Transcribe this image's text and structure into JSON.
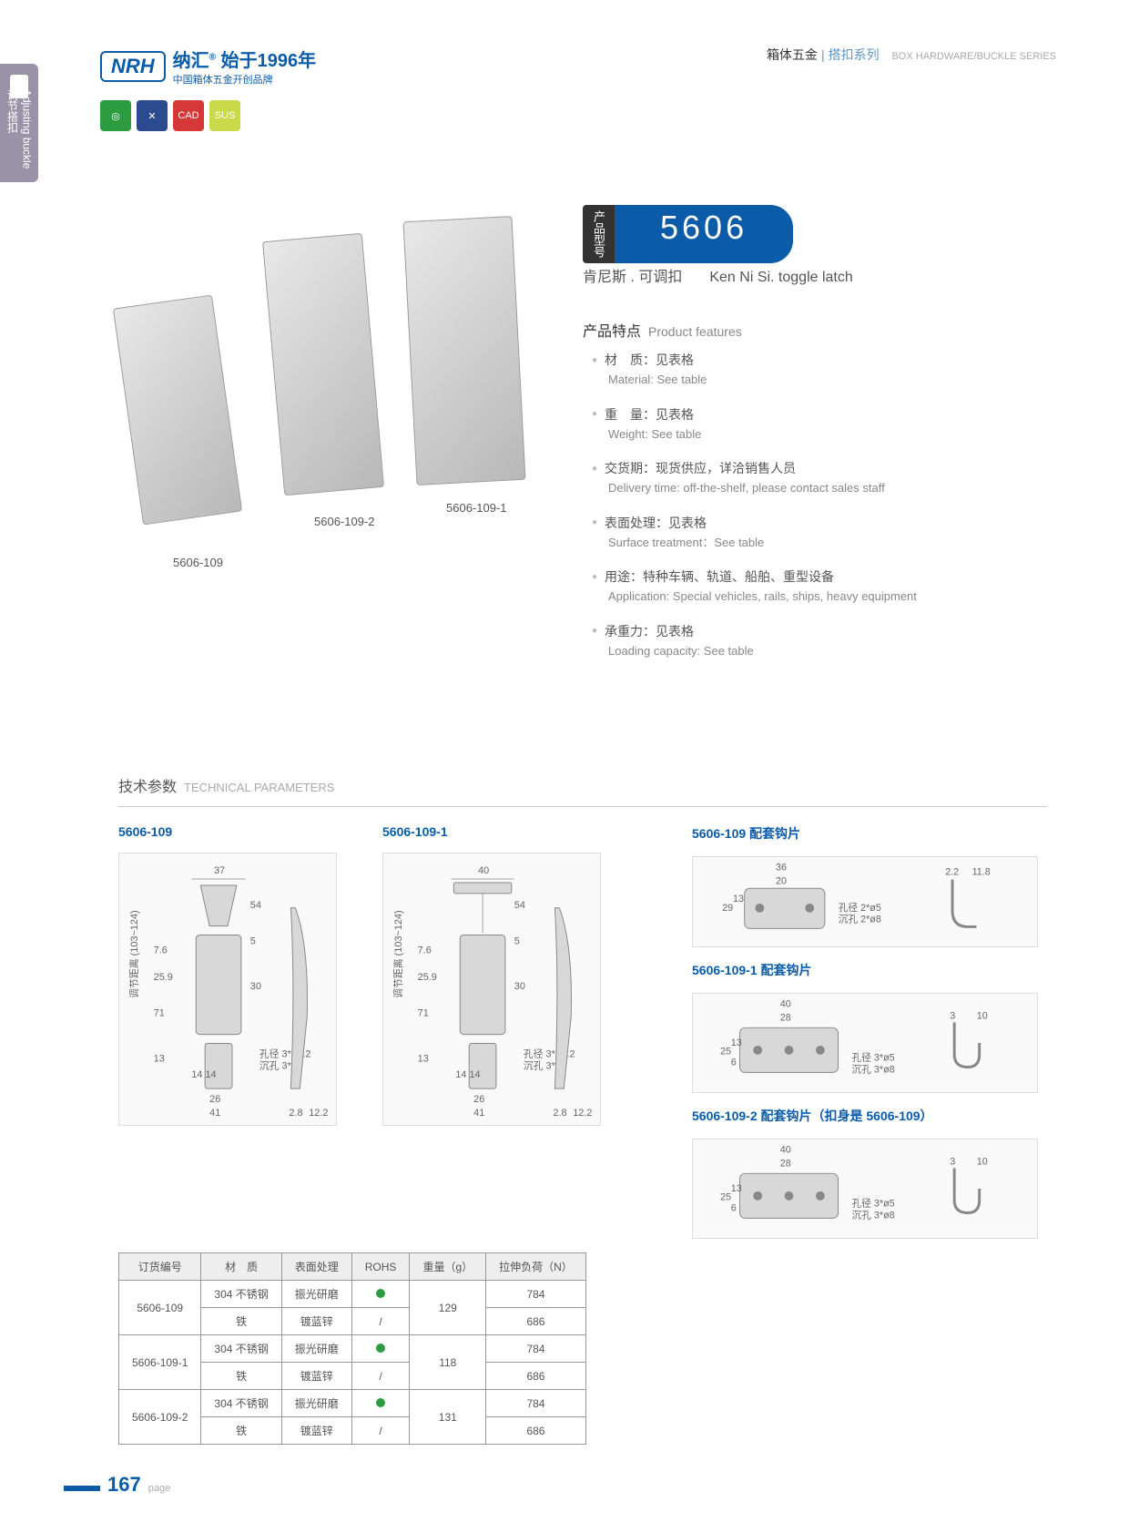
{
  "sidebar": {
    "cn": "调节搭扣",
    "en": "Adjusting buckle"
  },
  "header": {
    "logo": "NRH",
    "brand_cn": "纳汇",
    "since": "始于1996年",
    "tagline": "中国箱体五金开创品牌",
    "right_cn1": "箱体五金",
    "right_cn2": "搭扣系列",
    "right_en": "BOX HARDWARE/BUCKLE SERIES"
  },
  "icons": [
    "◎",
    "✕",
    "CAD",
    "SUS"
  ],
  "img_labels": [
    "5606-109",
    "5606-109-2",
    "5606-109-1"
  ],
  "product": {
    "tag": "产品型号",
    "number": "5606",
    "name_cn": "肯尼斯 . 可调扣",
    "name_en": "Ken Ni Si. toggle latch"
  },
  "features": {
    "title_cn": "产品特点",
    "title_en": "Product features",
    "items": [
      {
        "cn": "材　质：见表格",
        "en": "Material: See table"
      },
      {
        "cn": "重　量：见表格",
        "en": "Weight: See table"
      },
      {
        "cn": "交货期：现货供应，详洽销售人员",
        "en": "Delivery time: off-the-shelf, please contact sales staff"
      },
      {
        "cn": "表面处理：见表格",
        "en": "Surface treatment：See table"
      },
      {
        "cn": "用途：特种车辆、轨道、船舶、重型设备",
        "en": "Application: Special vehicles, rails, ships, heavy equipment"
      },
      {
        "cn": "承重力：见表格",
        "en": "Loading capacity: See table"
      }
    ]
  },
  "tech": {
    "title_cn": "技术参数",
    "title_en": "TECHNICAL PARAMETERS"
  },
  "drawings": {
    "d1": {
      "title": "5606-109",
      "w": "37",
      "h": "54",
      "range": "调节距离 (103~124)",
      "a": "7.6",
      "b": "25.9",
      "c": "71",
      "d": "13",
      "e": "5",
      "f": "14",
      "g": "14",
      "h2": "26",
      "i": "41",
      "j": "30",
      "k": "2.8",
      "l": "12.2",
      "note1": "孔径 3*ø5.2",
      "note2": "沉孔 3*ø8"
    },
    "d2": {
      "title": "5606-109-1",
      "w": "40",
      "h": "54",
      "range": "调节距离 (103~124)",
      "a": "7.6",
      "b": "25.9",
      "c": "71",
      "d": "13",
      "e": "5",
      "f": "14",
      "g": "14",
      "h2": "26",
      "i": "41",
      "j": "30",
      "k": "2.8",
      "l": "12.2",
      "note1": "孔径 3*ø5.2",
      "note2": "沉孔 3*ø8"
    },
    "d3": {
      "title": "5606-109 配套钩片",
      "w": "36",
      "w2": "20",
      "h": "29",
      "h2": "13",
      "t": "2.2",
      "hook": "11.8",
      "note1": "孔径 2*ø5",
      "note2": "沉孔 2*ø8"
    },
    "d4": {
      "title": "5606-109-1 配套钩片",
      "w": "40",
      "w2": "28",
      "h": "25",
      "h2": "13",
      "h3": "6",
      "t": "3",
      "hook": "10",
      "note1": "孔径 3*ø5",
      "note2": "沉孔 3*ø8"
    },
    "d5": {
      "title": "5606-109-2 配套钩片（扣身是 5606-109）",
      "w": "40",
      "w2": "28",
      "h": "25",
      "h2": "13",
      "h3": "6",
      "t": "3",
      "hook": "10",
      "note1": "孔径 3*ø5",
      "note2": "沉孔 3*ø8"
    }
  },
  "table": {
    "headers": [
      "订货编号",
      "材　质",
      "表面处理",
      "ROHS",
      "重量（g）",
      "拉伸负荷（N）"
    ],
    "rows": [
      {
        "code": "5606-109",
        "mat": "304 不锈钢",
        "surf": "振光研磨",
        "rohs": true,
        "wt": "129",
        "load": "784"
      },
      {
        "code": "",
        "mat": "铁",
        "surf": "镀蓝锌",
        "rohs": false,
        "wt": "",
        "load": "686"
      },
      {
        "code": "5606-109-1",
        "mat": "304 不锈钢",
        "surf": "振光研磨",
        "rohs": true,
        "wt": "118",
        "load": "784"
      },
      {
        "code": "",
        "mat": "铁",
        "surf": "镀蓝锌",
        "rohs": false,
        "wt": "",
        "load": "686"
      },
      {
        "code": "5606-109-2",
        "mat": "304 不锈钢",
        "surf": "振光研磨",
        "rohs": true,
        "wt": "131",
        "load": "784"
      },
      {
        "code": "",
        "mat": "铁",
        "surf": "镀蓝锌",
        "rohs": false,
        "wt": "",
        "load": "686"
      }
    ]
  },
  "footer": {
    "page": "167",
    "label": "page"
  },
  "colors": {
    "brand": "#0a5ba8",
    "side": "#9a93a8",
    "green": "#2d9b3f"
  }
}
